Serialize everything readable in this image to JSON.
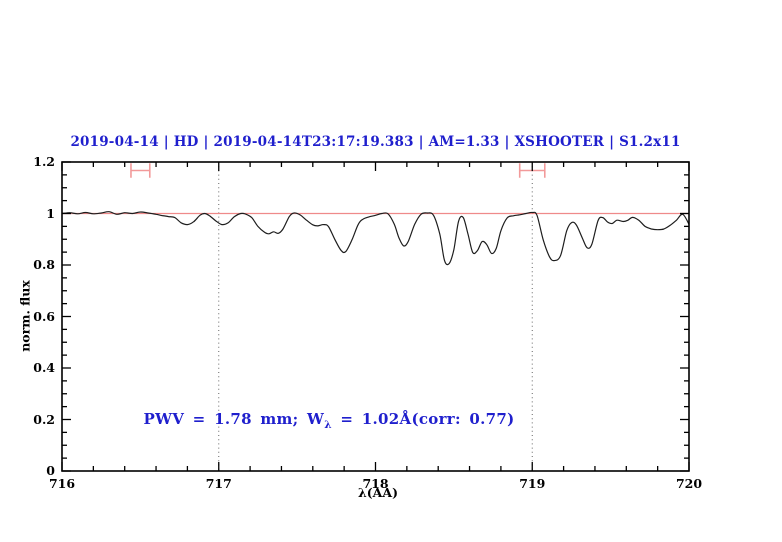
{
  "figure": {
    "background": "#ffffff"
  },
  "chart_data": {
    "type": "line",
    "title": "2019-04-14 | HD | 2019-04-14T23:17:19.383 | AM=1.33 | XSHOOTER | S1.2x11",
    "title_color": "#1f1fcd",
    "xlabel": "λ(AA)",
    "ylabel": "norm. flux",
    "xlim": [
      716,
      720
    ],
    "ylim": [
      0,
      1.2
    ],
    "grid": "off",
    "legend": "none",
    "x_major_ticks": [
      716,
      717,
      718,
      719,
      720
    ],
    "x_tick_labels": [
      "716",
      "717",
      "718",
      "719",
      "720"
    ],
    "x_minor_step": 0.2,
    "y_major_ticks": [
      0,
      0.2,
      0.4,
      0.6,
      0.8,
      1,
      1.2
    ],
    "y_tick_labels": [
      "0",
      "0.2",
      "0.4",
      "0.6",
      "0.8",
      "1",
      "1.2"
    ],
    "y_minor_step": 0.05,
    "reference_line": {
      "y": 1.0,
      "color": "#ef8a8a"
    },
    "dotted_vlines": {
      "x": [
        717,
        719
      ],
      "color": "#666666"
    },
    "interval_markers": [
      {
        "x_center": 716.5,
        "x_half_width": 0.06,
        "y": 1.167,
        "cap_half_height": 0.028
      },
      {
        "x_center": 719.0,
        "x_half_width": 0.08,
        "y": 1.167,
        "cap_half_height": 0.028
      }
    ],
    "marker_color": "#f29a9a",
    "axis_color": "#000000",
    "series": [
      {
        "name": "telluric-spectrum",
        "color": "#1e1e1e",
        "x": [
          716.0,
          716.05,
          716.1,
          716.15,
          716.2,
          716.25,
          716.3,
          716.35,
          716.4,
          716.45,
          716.5,
          716.55,
          716.6,
          716.64,
          716.68,
          716.72,
          716.76,
          716.8,
          716.84,
          716.88,
          716.91,
          716.94,
          716.98,
          717.02,
          717.06,
          717.1,
          717.14,
          717.17,
          717.21,
          717.25,
          717.29,
          717.32,
          717.35,
          717.38,
          717.41,
          717.45,
          717.48,
          717.52,
          717.56,
          717.6,
          717.63,
          717.67,
          717.7,
          717.74,
          717.78,
          717.81,
          717.85,
          717.89,
          717.92,
          717.96,
          718.0,
          718.04,
          718.08,
          718.12,
          718.15,
          718.18,
          718.21,
          718.25,
          718.29,
          718.33,
          718.37,
          718.41,
          718.44,
          718.47,
          718.5,
          718.53,
          718.56,
          718.59,
          718.62,
          718.65,
          718.68,
          718.71,
          718.74,
          718.77,
          718.8,
          718.84,
          718.88,
          718.92,
          718.96,
          719.0,
          719.03,
          719.07,
          719.11,
          719.14,
          719.18,
          719.22,
          719.25,
          719.28,
          719.32,
          719.35,
          719.38,
          719.42,
          719.45,
          719.48,
          719.51,
          719.54,
          719.58,
          719.61,
          719.64,
          719.68,
          719.72,
          719.76,
          719.8,
          719.84,
          719.88,
          719.92,
          719.96,
          720.0
        ],
        "y": [
          1.0,
          1.003,
          0.999,
          1.004,
          0.999,
          1.002,
          1.007,
          0.997,
          1.003,
          1.0,
          1.006,
          1.002,
          0.997,
          0.992,
          0.988,
          0.984,
          0.964,
          0.957,
          0.968,
          0.993,
          1.0,
          0.992,
          0.972,
          0.957,
          0.964,
          0.988,
          1.0,
          0.998,
          0.984,
          0.95,
          0.928,
          0.921,
          0.929,
          0.923,
          0.94,
          0.988,
          1.002,
          0.994,
          0.974,
          0.956,
          0.952,
          0.957,
          0.949,
          0.9,
          0.857,
          0.852,
          0.898,
          0.958,
          0.978,
          0.987,
          0.993,
          1.0,
          0.999,
          0.958,
          0.905,
          0.874,
          0.893,
          0.958,
          0.997,
          1.002,
          0.993,
          0.92,
          0.818,
          0.806,
          0.86,
          0.97,
          0.984,
          0.92,
          0.849,
          0.856,
          0.891,
          0.879,
          0.845,
          0.864,
          0.933,
          0.983,
          0.991,
          0.995,
          1.0,
          1.004,
          0.993,
          0.898,
          0.832,
          0.817,
          0.836,
          0.933,
          0.964,
          0.957,
          0.904,
          0.867,
          0.88,
          0.973,
          0.984,
          0.967,
          0.961,
          0.974,
          0.969,
          0.974,
          0.985,
          0.974,
          0.95,
          0.94,
          0.937,
          0.94,
          0.954,
          0.974,
          0.997,
          0.958
        ]
      }
    ],
    "annotation": {
      "part1": "PWV = 1.78 mm; W",
      "sub": "λ",
      "part2": " = 1.02Å(corr: 0.77)",
      "full_text": "PWV = 1.78 mm; Wλ = 1.02Å(corr: 0.77)",
      "color": "#1f1fcd",
      "x": 716.52,
      "y": 0.2
    }
  }
}
